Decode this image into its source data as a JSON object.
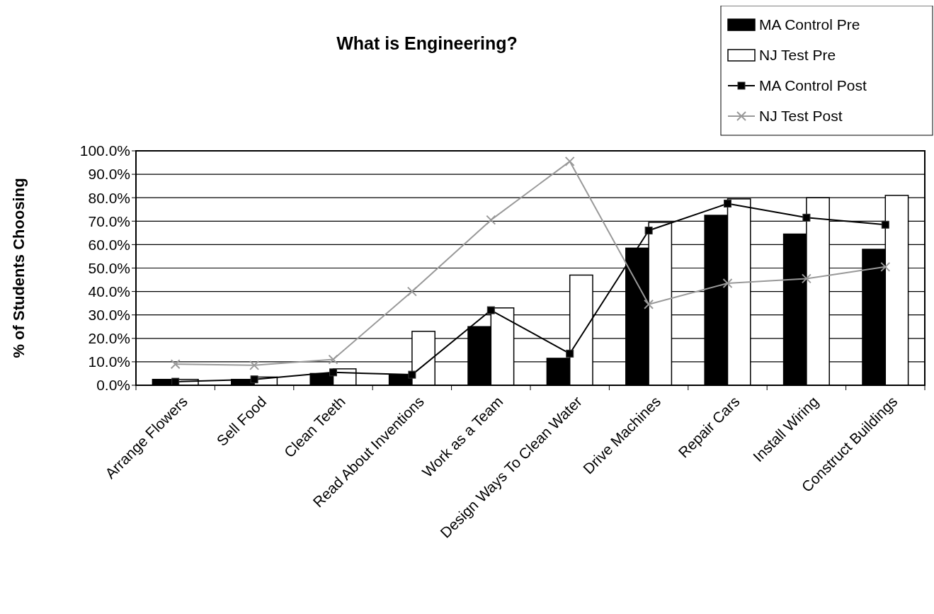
{
  "chart_data": {
    "type": "bar",
    "title": "What is Engineering?",
    "ylabel": "% of Students Choosing",
    "categories": [
      "Arrange Flowers",
      "Sell Food",
      "Clean Teeth",
      "Read About Inventions",
      "Work as a Team",
      "Design Ways To Clean Water",
      "Drive Machines",
      "Repair Cars",
      "Install Wiring",
      "Construct Buildings"
    ],
    "series": [
      {
        "name": "MA Control Pre",
        "color": "#000000",
        "values": [
          2.5,
          2.5,
          5,
          4.5,
          25,
          11.5,
          58.5,
          72.5,
          64.5,
          58
        ]
      },
      {
        "name": "NJ Test Pre",
        "color": "#ffffff",
        "values": [
          2.5,
          3.5,
          7,
          23,
          33,
          47,
          69.5,
          79.5,
          80,
          81
        ]
      },
      {
        "name": "MA Control Post",
        "type": "line",
        "color": "#000000",
        "marker": "square",
        "values": [
          1.5,
          2.5,
          5.5,
          4.5,
          32,
          13.5,
          66,
          77.5,
          71.5,
          68.5
        ]
      },
      {
        "name": "NJ Test Post",
        "type": "line",
        "color": "#999999",
        "marker": "cross",
        "values": [
          9,
          8.5,
          11,
          40,
          70.5,
          95.5,
          34.5,
          43.5,
          45.5,
          50.5
        ]
      }
    ],
    "ylim": [
      0,
      100
    ],
    "yticks": [
      {
        "value": 0,
        "label": "0.0%"
      },
      {
        "value": 10,
        "label": "10.0%"
      },
      {
        "value": 20,
        "label": "20.0%"
      },
      {
        "value": 30,
        "label": "30.0%"
      },
      {
        "value": 40,
        "label": "40.0%"
      },
      {
        "value": 50,
        "label": "50.0%"
      },
      {
        "value": 60,
        "label": "60.0%"
      },
      {
        "value": 70,
        "label": "70.0%"
      },
      {
        "value": 80,
        "label": "80.0%"
      },
      {
        "value": 90,
        "label": "90.0%"
      },
      {
        "value": 100,
        "label": "100.0%"
      }
    ],
    "grid": "y",
    "legend": "top right"
  }
}
